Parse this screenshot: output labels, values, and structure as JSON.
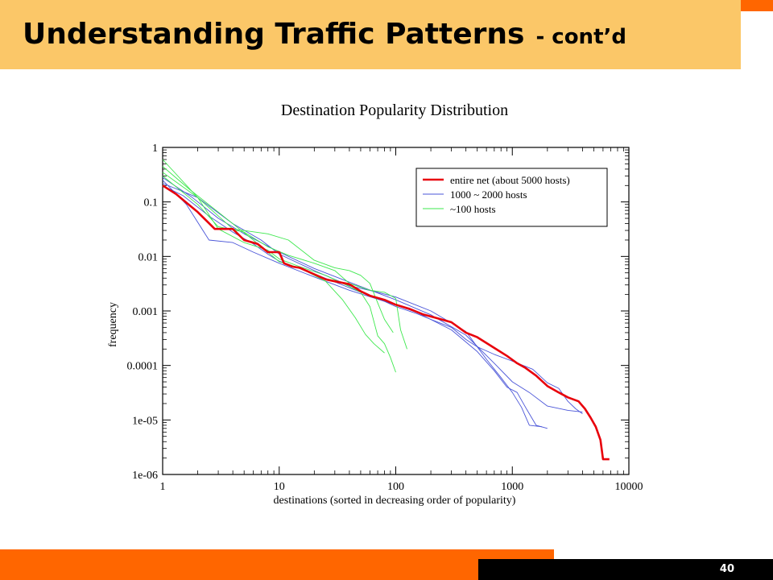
{
  "slide": {
    "title": "Understanding Traffic Patterns",
    "title_suffix": "- cont’d",
    "page_number": "40",
    "colors": {
      "accent_orange": "#ff6600",
      "title_bg": "#fbc768"
    }
  },
  "chart_data": {
    "type": "line",
    "title": "Destination Popularity Distribution",
    "xlabel": "destinations (sorted in decreasing order of popularity)",
    "ylabel": "frequency",
    "xscale": "log",
    "yscale": "log",
    "xlim": [
      1,
      10000
    ],
    "ylim": [
      1e-06,
      1
    ],
    "x_ticks": [
      {
        "v": 1,
        "label": "1"
      },
      {
        "v": 10,
        "label": "10"
      },
      {
        "v": 100,
        "label": "100"
      },
      {
        "v": 1000,
        "label": "1000"
      },
      {
        "v": 10000,
        "label": "10000"
      }
    ],
    "y_ticks": [
      {
        "v": 1,
        "label": "1"
      },
      {
        "v": 0.1,
        "label": "0.1"
      },
      {
        "v": 0.01,
        "label": "0.01"
      },
      {
        "v": 0.001,
        "label": "0.001"
      },
      {
        "v": 0.0001,
        "label": "0.0001"
      },
      {
        "v": 1e-05,
        "label": "1e-05"
      },
      {
        "v": 1e-06,
        "label": "1e-06"
      }
    ],
    "grid": false,
    "legend_position": "top-right",
    "series": [
      {
        "name": "entire net (about 5000 hosts)",
        "color": "#e8000b",
        "width": 2.6,
        "points": [
          [
            1,
            0.2
          ],
          [
            1.3,
            0.14
          ],
          [
            2,
            0.065
          ],
          [
            2.8,
            0.032
          ],
          [
            4,
            0.032
          ],
          [
            5,
            0.02
          ],
          [
            6.5,
            0.017
          ],
          [
            8,
            0.012
          ],
          [
            10,
            0.012
          ],
          [
            11,
            0.0075
          ],
          [
            13,
            0.0065
          ],
          [
            15,
            0.0062
          ],
          [
            20,
            0.0047
          ],
          [
            25,
            0.0038
          ],
          [
            30,
            0.0035
          ],
          [
            40,
            0.0031
          ],
          [
            50,
            0.0023
          ],
          [
            60,
            0.0019
          ],
          [
            80,
            0.0016
          ],
          [
            100,
            0.0013
          ],
          [
            130,
            0.0011
          ],
          [
            170,
            0.00087
          ],
          [
            220,
            0.00075
          ],
          [
            300,
            0.00062
          ],
          [
            400,
            0.0004
          ],
          [
            500,
            0.00033
          ],
          [
            700,
            0.00021
          ],
          [
            900,
            0.00015
          ],
          [
            1100,
            0.00011
          ],
          [
            1300,
            9e-05
          ],
          [
            1600,
            6.5e-05
          ],
          [
            2000,
            4.2e-05
          ],
          [
            2500,
            3.2e-05
          ],
          [
            3000,
            2.6e-05
          ],
          [
            3700,
            2.2e-05
          ],
          [
            4200,
            1.6e-05
          ],
          [
            4700,
            1.1e-05
          ],
          [
            5200,
            7.5e-06
          ],
          [
            5700,
            4.3e-06
          ],
          [
            6000,
            1.9e-06
          ],
          [
            6800,
            1.9e-06
          ]
        ]
      },
      {
        "name": "1000 ~ 2000 hosts",
        "color": "#4a55d8",
        "width": 0.9,
        "points": [
          [
            1,
            0.2
          ],
          [
            1.5,
            0.13
          ],
          [
            2.5,
            0.055
          ],
          [
            4,
            0.028
          ],
          [
            6,
            0.017
          ],
          [
            8,
            0.011
          ],
          [
            10,
            0.0082
          ],
          [
            14,
            0.0063
          ],
          [
            20,
            0.0048
          ],
          [
            30,
            0.0034
          ],
          [
            50,
            0.0022
          ],
          [
            80,
            0.0015
          ],
          [
            100,
            0.0012
          ],
          [
            150,
            0.0009
          ],
          [
            200,
            0.0007
          ],
          [
            300,
            0.0005
          ],
          [
            400,
            0.0003
          ],
          [
            500,
            0.00022
          ],
          [
            700,
            0.00016
          ],
          [
            1000,
            0.00012
          ],
          [
            1500,
            8.5e-05
          ],
          [
            2000,
            4.8e-05
          ],
          [
            2500,
            3.8e-05
          ],
          [
            3000,
            2.2e-05
          ],
          [
            3500,
            1.6e-05
          ],
          [
            4000,
            1.3e-05
          ]
        ]
      },
      {
        "name": "",
        "color": "#4a55d8",
        "width": 0.9,
        "points": [
          [
            1,
            0.25
          ],
          [
            1.6,
            0.09
          ],
          [
            2.5,
            0.02
          ],
          [
            4,
            0.018
          ],
          [
            6,
            0.012
          ],
          [
            10,
            0.0075
          ],
          [
            20,
            0.0042
          ],
          [
            40,
            0.0024
          ],
          [
            80,
            0.0015
          ],
          [
            150,
            0.00095
          ],
          [
            300,
            0.00045
          ],
          [
            500,
            0.00018
          ],
          [
            700,
            8e-05
          ],
          [
            900,
            4e-05
          ],
          [
            1100,
            3.2e-05
          ],
          [
            1300,
            1.7e-05
          ],
          [
            1600,
            8e-06
          ],
          [
            2000,
            7e-06
          ]
        ]
      },
      {
        "name": "",
        "color": "#4a55d8",
        "width": 0.9,
        "points": [
          [
            1,
            0.22
          ],
          [
            2,
            0.12
          ],
          [
            4,
            0.04
          ],
          [
            7,
            0.02
          ],
          [
            10,
            0.011
          ],
          [
            20,
            0.0055
          ],
          [
            40,
            0.0029
          ],
          [
            70,
            0.0022
          ],
          [
            100,
            0.0018
          ],
          [
            200,
            0.001
          ],
          [
            400,
            0.00042
          ],
          [
            600,
            0.00013
          ],
          [
            800,
            6e-05
          ],
          [
            1000,
            3.2e-05
          ],
          [
            1200,
            1.7e-05
          ],
          [
            1400,
            8e-06
          ],
          [
            1800,
            7.5e-06
          ]
        ]
      },
      {
        "name": "",
        "color": "#4a55d8",
        "width": 0.9,
        "points": [
          [
            1,
            0.28
          ],
          [
            1.8,
            0.12
          ],
          [
            3,
            0.05
          ],
          [
            5,
            0.026
          ],
          [
            10,
            0.012
          ],
          [
            20,
            0.006
          ],
          [
            50,
            0.0028
          ],
          [
            100,
            0.0016
          ],
          [
            200,
            0.00085
          ],
          [
            400,
            0.00036
          ],
          [
            700,
            0.00011
          ],
          [
            1000,
            5e-05
          ],
          [
            1400,
            3.2e-05
          ],
          [
            2000,
            1.8e-05
          ],
          [
            3000,
            1.5e-05
          ],
          [
            4000,
            1.4e-05
          ]
        ]
      },
      {
        "name": "~100 hosts",
        "color": "#3ee84e",
        "width": 0.9,
        "points": [
          [
            1,
            0.6
          ],
          [
            2,
            0.12
          ],
          [
            3,
            0.032
          ],
          [
            5,
            0.018
          ],
          [
            8,
            0.013
          ],
          [
            10,
            0.009
          ],
          [
            15,
            0.0065
          ],
          [
            25,
            0.0045
          ],
          [
            40,
            0.0028
          ],
          [
            50,
            0.0022
          ],
          [
            60,
            0.0012
          ],
          [
            70,
            0.00035
          ],
          [
            80,
            0.00025
          ],
          [
            90,
            0.00014
          ],
          [
            100,
            7.5e-05
          ]
        ]
      },
      {
        "name": "",
        "color": "#3ee84e",
        "width": 0.9,
        "points": [
          [
            1,
            0.45
          ],
          [
            1.7,
            0.17
          ],
          [
            3,
            0.065
          ],
          [
            6,
            0.02
          ],
          [
            10,
            0.008
          ],
          [
            15,
            0.0062
          ],
          [
            25,
            0.0035
          ],
          [
            35,
            0.0016
          ],
          [
            45,
            0.00075
          ],
          [
            55,
            0.00037
          ],
          [
            65,
            0.00025
          ],
          [
            80,
            0.00017
          ]
        ]
      },
      {
        "name": "",
        "color": "#3ee84e",
        "width": 0.9,
        "points": [
          [
            1,
            0.35
          ],
          [
            2,
            0.12
          ],
          [
            4,
            0.032
          ],
          [
            8,
            0.026
          ],
          [
            12,
            0.02
          ],
          [
            20,
            0.0085
          ],
          [
            30,
            0.0062
          ],
          [
            40,
            0.0055
          ],
          [
            50,
            0.0045
          ],
          [
            60,
            0.0032
          ],
          [
            70,
            0.0014
          ],
          [
            80,
            0.0007
          ],
          [
            95,
            0.0004
          ]
        ]
      },
      {
        "name": "",
        "color": "#3ee84e",
        "width": 0.9,
        "points": [
          [
            1,
            0.3
          ],
          [
            2,
            0.09
          ],
          [
            3,
            0.035
          ],
          [
            5,
            0.028
          ],
          [
            8,
            0.015
          ],
          [
            12,
            0.0105
          ],
          [
            20,
            0.0075
          ],
          [
            30,
            0.0055
          ],
          [
            40,
            0.0032
          ],
          [
            60,
            0.0024
          ],
          [
            80,
            0.0022
          ],
          [
            100,
            0.0017
          ],
          [
            110,
            0.00045
          ],
          [
            125,
            0.0002
          ]
        ]
      }
    ]
  }
}
